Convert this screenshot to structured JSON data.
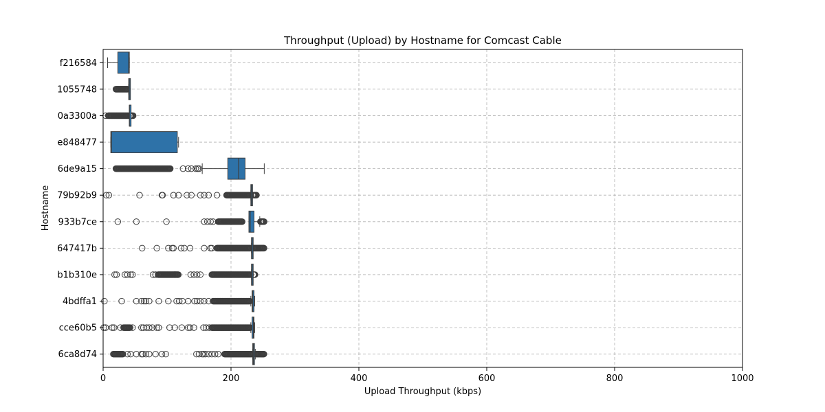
{
  "chart_data": {
    "type": "boxplot",
    "orientation": "horizontal",
    "title": "Throughput (Upload) by Hostname for Comcast Cable",
    "xlabel": "Upload Throughput (kbps)",
    "ylabel": "Hostname",
    "xlim": [
      0,
      1000
    ],
    "xticks": [
      0,
      200,
      400,
      600,
      800,
      1000
    ],
    "grid": true,
    "box_color": "#2e72a8",
    "edge_color": "#3d3d3d",
    "categories": [
      "f216584",
      "1055748",
      "0a3300a",
      "e848477",
      "6de9a15",
      "79b92b9",
      "933b7ce",
      "647417b",
      "b1b310e",
      "4bdffa1",
      "cce60b5",
      "6ca8d74"
    ],
    "boxes": [
      {
        "name": "f216584",
        "whisker_low": 7,
        "q1": 23,
        "median": 40,
        "q3": 41,
        "whisker_high": 41,
        "outliers": []
      },
      {
        "name": "1055748",
        "whisker_low": 40,
        "q1": 40,
        "median": 41,
        "q3": 41,
        "whisker_high": 41,
        "outlier_ranges": [
          [
            20,
            39
          ]
        ],
        "outliers": []
      },
      {
        "name": "0a3300a",
        "whisker_low": 41,
        "q1": 41,
        "median": 41,
        "q3": 41,
        "whisker_high": 41,
        "outlier_ranges": [
          [
            8,
            40
          ],
          [
            42,
            47
          ]
        ],
        "outliers": [
          4
        ]
      },
      {
        "name": "e848477",
        "whisker_low": 12,
        "q1": 12,
        "median": 13,
        "q3": 116,
        "whisker_high": 118,
        "outliers": []
      },
      {
        "name": "6de9a15",
        "whisker_low": 155,
        "q1": 195,
        "median": 212,
        "q3": 222,
        "whisker_high": 252,
        "outlier_ranges": [
          [
            20,
            105
          ]
        ],
        "outliers": [
          125,
          133,
          138,
          145,
          148,
          150
        ]
      },
      {
        "name": "79b92b9",
        "whisker_low": 231,
        "q1": 231,
        "median": 232,
        "q3": 232,
        "whisker_high": 233,
        "outlier_ranges": [
          [
            193,
            230
          ],
          [
            234,
            240
          ]
        ],
        "outliers": [
          5,
          9,
          57,
          92,
          93,
          110,
          118,
          131,
          138,
          152,
          158,
          165,
          178
        ]
      },
      {
        "name": "933b7ce",
        "whisker_low": 228,
        "q1": 228,
        "median": 230,
        "q3": 236,
        "whisker_high": 245,
        "outlier_ranges": [
          [
            180,
            218
          ],
          [
            246,
            252
          ]
        ],
        "outliers": [
          23,
          52,
          99,
          158,
          163,
          168,
          172
        ]
      },
      {
        "name": "647417b",
        "whisker_low": 232,
        "q1": 232,
        "median": 233,
        "q3": 234,
        "whisker_high": 234,
        "outlier_ranges": [
          [
            178,
            231
          ],
          [
            235,
            252
          ]
        ],
        "outliers": [
          61,
          84,
          102,
          108,
          110,
          122,
          127,
          136,
          158,
          168,
          170
        ]
      },
      {
        "name": "b1b310e",
        "whisker_low": 232,
        "q1": 232,
        "median": 233,
        "q3": 233,
        "whisker_high": 234,
        "outlier_ranges": [
          [
            86,
            118
          ],
          [
            170,
            231
          ],
          [
            235,
            238
          ]
        ],
        "outliers": [
          18,
          21,
          34,
          38,
          43,
          46,
          78,
          82,
          137,
          142,
          147,
          152
        ]
      },
      {
        "name": "4bdffa1",
        "whisker_low": 231,
        "q1": 233,
        "median": 234,
        "q3": 236,
        "whisker_high": 237,
        "outlier_ranges": [
          [
            172,
            230
          ]
        ],
        "outliers": [
          2,
          29,
          52,
          60,
          64,
          67,
          72,
          87,
          102,
          115,
          119,
          124,
          133,
          143,
          147,
          152,
          158,
          165
        ]
      },
      {
        "name": "cce60b5",
        "whisker_low": 231,
        "q1": 233,
        "median": 235,
        "q3": 236,
        "whisker_high": 237,
        "outlier_ranges": [
          [
            32,
            42
          ],
          [
            170,
            230
          ]
        ],
        "outliers": [
          1,
          4,
          14,
          17,
          27,
          46,
          60,
          63,
          68,
          72,
          77,
          84,
          87,
          104,
          112,
          123,
          133,
          136,
          142,
          157,
          161,
          166
        ]
      },
      {
        "name": "6ca8d74",
        "whisker_low": 234,
        "q1": 234,
        "median": 235,
        "q3": 236,
        "whisker_high": 238,
        "outlier_ranges": [
          [
            16,
            31
          ],
          [
            190,
            233
          ],
          [
            239,
            252
          ]
        ],
        "outliers": [
          38,
          43,
          52,
          60,
          62,
          67,
          72,
          82,
          92,
          98,
          146,
          150,
          155,
          157,
          160,
          165,
          170,
          175,
          180
        ]
      }
    ]
  }
}
